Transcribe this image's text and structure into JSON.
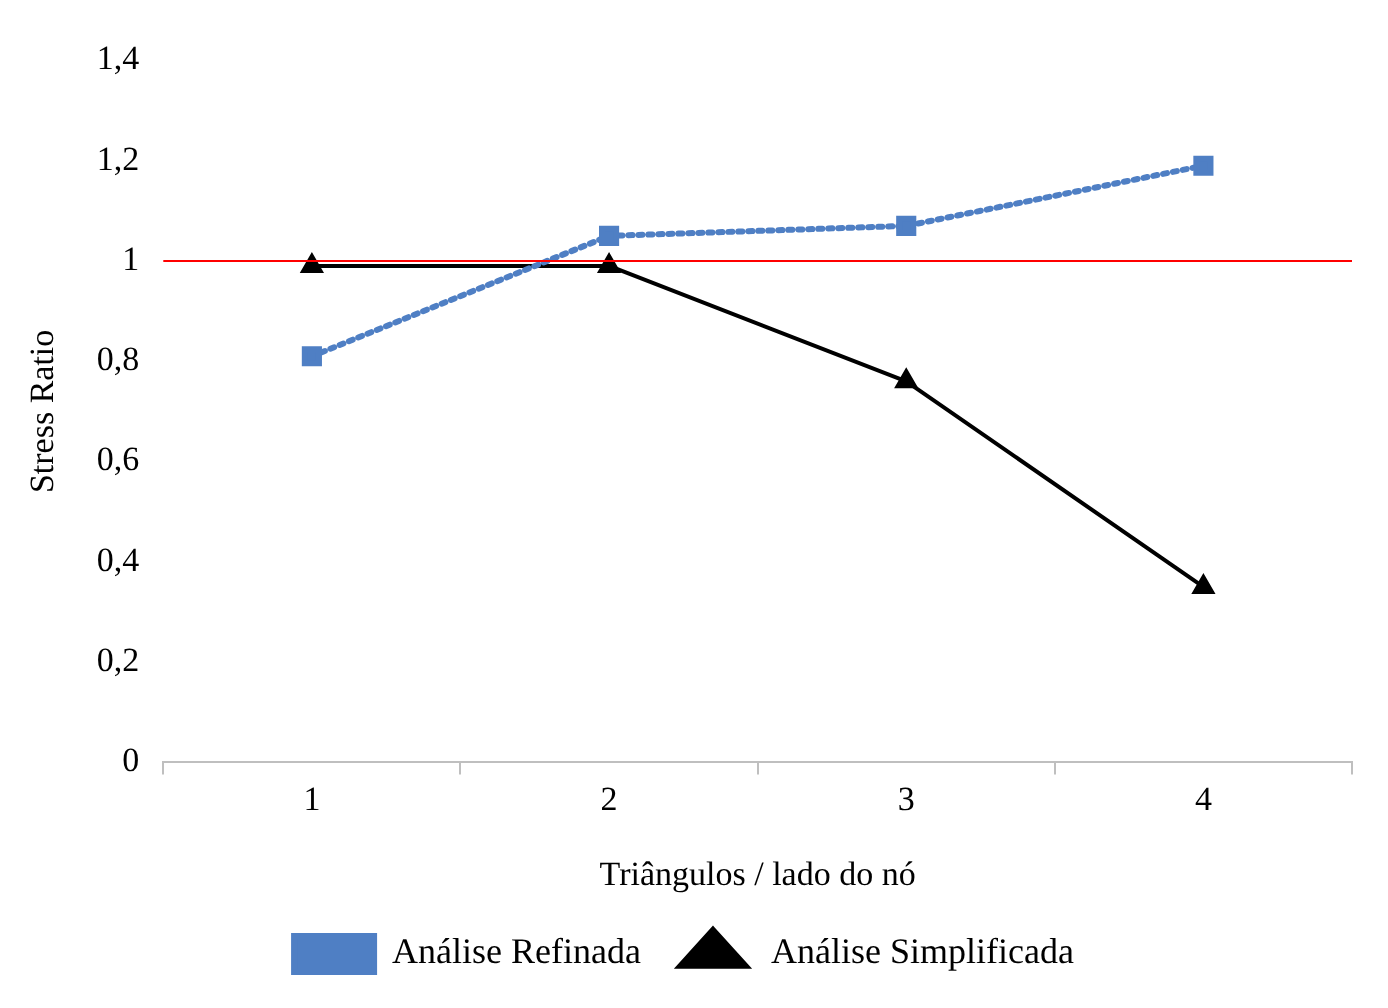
{
  "chart_data": {
    "type": "line",
    "xlabel": "Triângulos / lado do nó",
    "ylabel": "Stress Ratio",
    "categories": [
      "1",
      "2",
      "3",
      "4"
    ],
    "series": [
      {
        "name": "Análise Refinada",
        "color": "#4f7fc4",
        "values": [
          0.81,
          1.05,
          1.07,
          1.19
        ],
        "marker": "square",
        "line_style": "dotted"
      },
      {
        "name": "Análise Simplificada",
        "color": "#000000",
        "values": [
          0.99,
          0.99,
          0.76,
          0.35
        ],
        "marker": "triangle",
        "line_style": "solid"
      }
    ],
    "ylim": [
      0,
      1.4
    ],
    "yticks": [
      0,
      {
        "value": 0.2,
        "label": "0,2"
      },
      {
        "value": 0.4,
        "label": "0,4"
      },
      {
        "value": 0.6,
        "label": "0,6"
      },
      {
        "value": 0.8,
        "label": "0,8"
      },
      1,
      {
        "value": 1.2,
        "label": "1,2"
      },
      {
        "value": 1.4,
        "label": "1,4"
      }
    ],
    "ref_lines": [
      {
        "axis": "y",
        "value": 1,
        "color": "#ff0000"
      }
    ],
    "grid": false,
    "legend": "bottom"
  }
}
